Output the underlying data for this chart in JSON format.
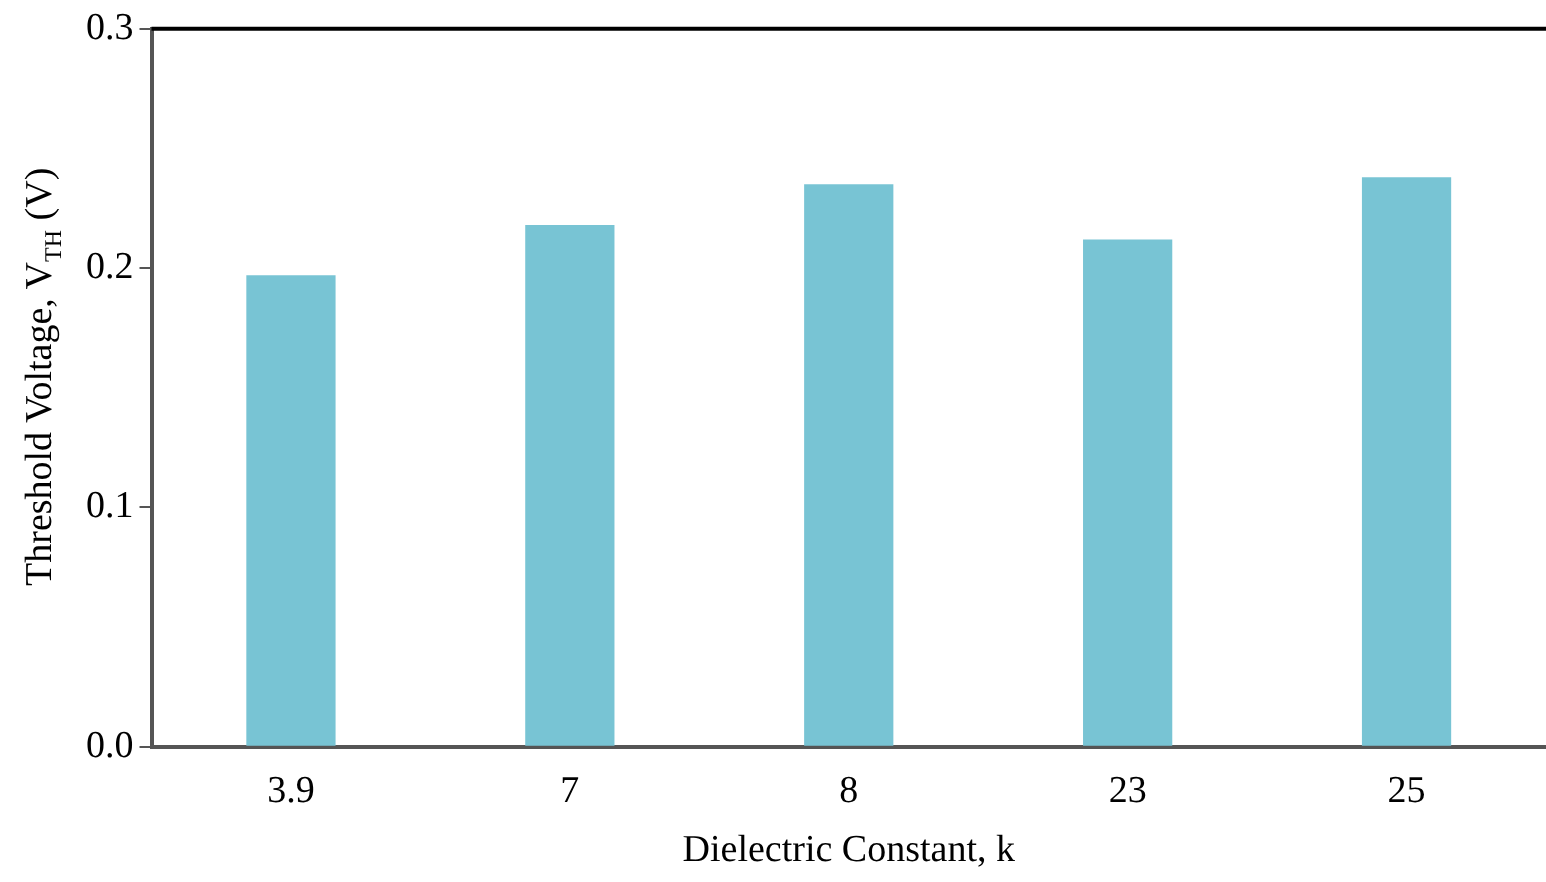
{
  "chart_data": {
    "type": "bar",
    "xlabel": "Dielectric Constant, k",
    "ylabel": "Threshold Voltage, V$_{TH}$ (V)",
    "categories": [
      "3.9",
      "7",
      "8",
      "23",
      "25"
    ],
    "values": [
      0.197,
      0.218,
      0.235,
      0.212,
      0.238
    ],
    "color": "#78c4d4",
    "ylim": [
      0,
      0.3
    ],
    "yticks": [
      {
        "value": 0,
        "label": "0.0"
      },
      0.1,
      0.2,
      0.3
    ],
    "grid": false,
    "legend": false
  }
}
